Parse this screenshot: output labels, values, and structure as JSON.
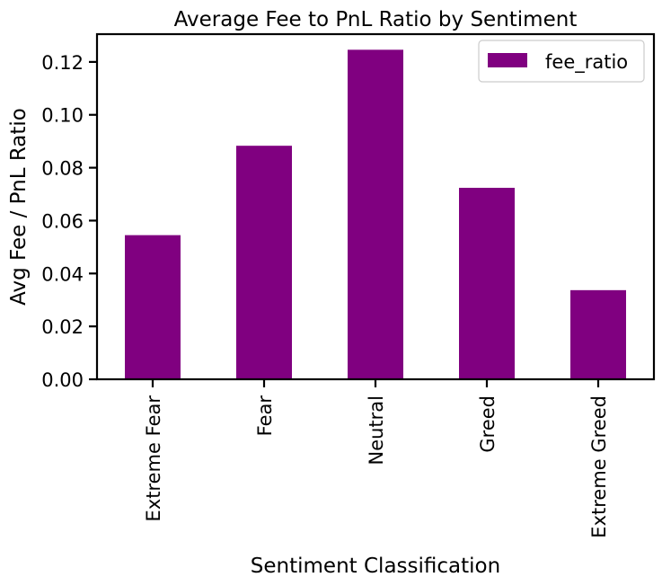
{
  "chart_data": {
    "type": "bar",
    "title": "Average Fee to PnL Ratio by Sentiment",
    "xlabel": "Sentiment Classification",
    "ylabel": "Avg Fee / PnL Ratio",
    "categories": [
      "Extreme Fear",
      "Fear",
      "Neutral",
      "Greed",
      "Extreme Greed"
    ],
    "series": [
      {
        "name": "fee_ratio",
        "values": [
          0.0545,
          0.0883,
          0.1246,
          0.0724,
          0.0337
        ],
        "color": "#800080"
      }
    ],
    "ylim": [
      0,
      0.1305
    ],
    "yticks": [
      0.0,
      0.02,
      0.04,
      0.06,
      0.08,
      0.1,
      0.12
    ],
    "ytick_labels": [
      "0.00",
      "0.02",
      "0.04",
      "0.06",
      "0.08",
      "0.10",
      "0.12"
    ],
    "legend": {
      "position": "top-right",
      "entries": [
        "fee_ratio"
      ]
    },
    "grid": false
  }
}
